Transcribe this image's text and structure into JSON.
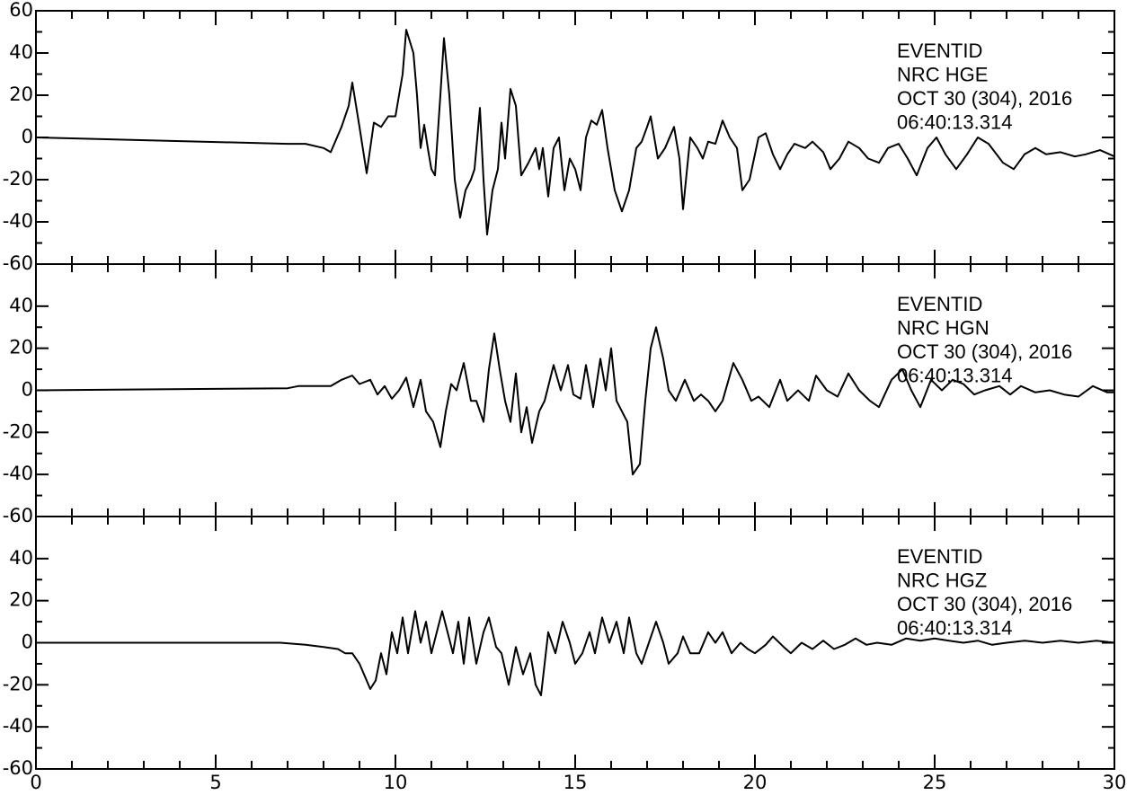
{
  "chart_data": [
    {
      "type": "line",
      "annotations": [
        "EVENTID",
        "NRC   HGE",
        "OCT 30 (304), 2016",
        "06:40:13.314"
      ],
      "x": [
        0,
        7,
        7.5,
        8,
        8.2,
        8.5,
        8.7,
        8.8,
        9.0,
        9.2,
        9.4,
        9.6,
        9.8,
        10.0,
        10.2,
        10.3,
        10.5,
        10.6,
        10.7,
        10.8,
        10.9,
        11.0,
        11.1,
        11.25,
        11.35,
        11.5,
        11.65,
        11.8,
        11.95,
        12.1,
        12.2,
        12.35,
        12.45,
        12.55,
        12.7,
        12.85,
        12.95,
        13.05,
        13.2,
        13.35,
        13.5,
        13.7,
        13.9,
        14.0,
        14.1,
        14.25,
        14.4,
        14.55,
        14.7,
        14.85,
        15.0,
        15.15,
        15.3,
        15.45,
        15.6,
        15.75,
        15.9,
        16.1,
        16.3,
        16.5,
        16.7,
        16.85,
        17.0,
        17.1,
        17.3,
        17.5,
        17.75,
        17.9,
        18.0,
        18.2,
        18.4,
        18.55,
        18.7,
        18.9,
        19.1,
        19.3,
        19.5,
        19.65,
        19.85,
        20.1,
        20.3,
        20.5,
        20.7,
        20.9,
        21.1,
        21.4,
        21.6,
        21.9,
        22.1,
        22.35,
        22.6,
        22.9,
        23.15,
        23.45,
        23.7,
        24.0,
        24.25,
        24.5,
        24.8,
        25.05,
        25.3,
        25.6,
        25.9,
        26.2,
        26.5,
        26.9,
        27.2,
        27.5,
        27.8,
        28.1,
        28.5,
        28.9,
        29.2,
        29.6,
        30
      ],
      "series": [
        {
          "color": "#000000",
          "values": [
            0,
            -3,
            -3,
            -5,
            -7,
            5,
            15,
            26,
            5,
            -17,
            7,
            5,
            10,
            10,
            30,
            51,
            40,
            20,
            -5,
            6,
            -5,
            -15,
            -18,
            20,
            47,
            20,
            -20,
            -38,
            -25,
            -20,
            -15,
            14,
            -20,
            -46,
            -25,
            -15,
            7,
            -10,
            23,
            15,
            -18,
            -12,
            -5,
            -15,
            -5,
            -28,
            -5,
            0,
            -25,
            -10,
            -15,
            -25,
            0,
            8,
            6,
            13,
            -5,
            -25,
            -35,
            -25,
            -5,
            -2,
            5,
            10,
            -10,
            -5,
            5,
            -10,
            -34,
            0,
            -5,
            -10,
            -2,
            -3,
            8,
            0,
            -5,
            -25,
            -20,
            0,
            2,
            -8,
            -15,
            -8,
            -3,
            -5,
            -2,
            -7,
            -15,
            -10,
            -2,
            -5,
            -10,
            -12,
            -5,
            -3,
            -10,
            -18,
            -5,
            0,
            -8,
            -15,
            -8,
            0,
            -3,
            -12,
            -15,
            -8,
            -5,
            -8,
            -7,
            -9,
            -8,
            -6,
            -9
          ]
        }
      ],
      "xlim": [
        0,
        30
      ],
      "ylim": [
        -60,
        60
      ],
      "yticks": [
        -60,
        -40,
        -20,
        0,
        20,
        40,
        60
      ]
    },
    {
      "type": "line",
      "annotations": [
        "EVENTID",
        "NRC   HGN",
        "OCT 30 (304), 2016",
        "06:40:13.314"
      ],
      "x": [
        0,
        7,
        7.3,
        7.8,
        8.2,
        8.5,
        8.8,
        9.0,
        9.3,
        9.5,
        9.7,
        9.9,
        10.1,
        10.3,
        10.5,
        10.7,
        10.85,
        11.05,
        11.25,
        11.4,
        11.55,
        11.7,
        11.9,
        12.1,
        12.25,
        12.45,
        12.6,
        12.75,
        12.9,
        13.05,
        13.2,
        13.35,
        13.5,
        13.65,
        13.8,
        14.0,
        14.15,
        14.4,
        14.6,
        14.8,
        14.95,
        15.15,
        15.3,
        15.5,
        15.7,
        15.85,
        16.0,
        16.15,
        16.3,
        16.45,
        16.6,
        16.8,
        16.95,
        17.1,
        17.25,
        17.45,
        17.6,
        17.8,
        18.05,
        18.3,
        18.5,
        18.7,
        18.9,
        19.1,
        19.4,
        19.65,
        19.9,
        20.1,
        20.4,
        20.7,
        20.9,
        21.2,
        21.5,
        21.7,
        22.0,
        22.3,
        22.6,
        22.9,
        23.2,
        23.45,
        23.8,
        24.1,
        24.35,
        24.6,
        24.9,
        25.2,
        25.5,
        25.8,
        26.1,
        26.4,
        26.8,
        27.1,
        27.4,
        27.8,
        28.2,
        28.6,
        29.0,
        29.4,
        29.8,
        30
      ],
      "series": [
        {
          "color": "#000000",
          "values": [
            0,
            1,
            2,
            2,
            2,
            5,
            7,
            3,
            5,
            -2,
            2,
            -4,
            0,
            6,
            -8,
            5,
            -10,
            -15,
            -27,
            -10,
            3,
            0,
            13,
            -5,
            -5,
            -15,
            10,
            27,
            10,
            -5,
            -15,
            8,
            -20,
            -8,
            -25,
            -10,
            -5,
            12,
            0,
            12,
            -2,
            -4,
            12,
            -8,
            15,
            0,
            20,
            -5,
            -10,
            -15,
            -40,
            -35,
            -5,
            20,
            30,
            15,
            0,
            -5,
            5,
            -5,
            -2,
            -5,
            -10,
            -5,
            13,
            5,
            -5,
            -3,
            -8,
            5,
            -5,
            0,
            -5,
            7,
            0,
            -3,
            8,
            0,
            -5,
            -8,
            5,
            10,
            0,
            -8,
            5,
            0,
            5,
            3,
            -2,
            0,
            2,
            -2,
            2,
            -1,
            0,
            -2,
            -3,
            2,
            -1,
            -1
          ]
        }
      ],
      "xlim": [
        0,
        30
      ],
      "ylim": [
        -60,
        60
      ],
      "yticks": [
        -60,
        -40,
        -20,
        0,
        20,
        40
      ]
    },
    {
      "type": "line",
      "annotations": [
        "EVENTID",
        "NRC   HGZ",
        "OCT 30 (304), 2016",
        "06:40:13.314"
      ],
      "x": [
        0,
        6.8,
        7.5,
        8.0,
        8.4,
        8.6,
        8.8,
        9.0,
        9.3,
        9.45,
        9.6,
        9.75,
        9.9,
        10.05,
        10.2,
        10.35,
        10.55,
        10.7,
        10.85,
        11.0,
        11.15,
        11.3,
        11.45,
        11.6,
        11.75,
        11.9,
        12.05,
        12.25,
        12.45,
        12.6,
        12.8,
        12.95,
        13.15,
        13.35,
        13.55,
        13.75,
        13.9,
        14.05,
        14.25,
        14.45,
        14.65,
        14.85,
        15.0,
        15.2,
        15.4,
        15.55,
        15.75,
        15.95,
        16.15,
        16.35,
        16.5,
        16.7,
        16.85,
        17.05,
        17.25,
        17.45,
        17.6,
        17.85,
        18.0,
        18.2,
        18.45,
        18.7,
        18.9,
        19.1,
        19.35,
        19.6,
        19.8,
        20.0,
        20.3,
        20.5,
        20.8,
        21.0,
        21.3,
        21.6,
        21.9,
        22.2,
        22.5,
        22.8,
        23.1,
        23.4,
        23.8,
        24.2,
        24.6,
        25.0,
        25.4,
        25.8,
        26.2,
        26.6,
        27.0,
        27.5,
        28.0,
        28.5,
        29.0,
        29.5,
        30
      ],
      "series": [
        {
          "color": "#000000",
          "values": [
            0,
            0,
            -1,
            -2,
            -3,
            -5,
            -5,
            -10,
            -22,
            -18,
            -5,
            -15,
            5,
            -5,
            12,
            -5,
            15,
            0,
            10,
            -5,
            5,
            15,
            5,
            -5,
            10,
            -10,
            12,
            -10,
            5,
            12,
            -2,
            -5,
            -20,
            -2,
            -15,
            -5,
            -20,
            -25,
            5,
            -5,
            10,
            0,
            -10,
            -5,
            5,
            -5,
            12,
            0,
            10,
            -5,
            12,
            -5,
            -10,
            0,
            10,
            0,
            -10,
            -5,
            3,
            -5,
            -5,
            5,
            0,
            5,
            -5,
            0,
            -3,
            -5,
            -1,
            3,
            -2,
            -5,
            0,
            -3,
            1,
            -3,
            -1,
            2,
            -1,
            0,
            -1,
            2,
            1,
            2,
            1,
            0,
            1,
            -1,
            0,
            1,
            0,
            1,
            0,
            1,
            0
          ]
        }
      ],
      "xlim": [
        0,
        30
      ],
      "ylim": [
        -60,
        60
      ],
      "yticks": [
        -60,
        -40,
        -20,
        0,
        20,
        40
      ],
      "xticks": [
        0,
        5,
        10,
        15,
        20,
        25,
        30
      ]
    }
  ]
}
